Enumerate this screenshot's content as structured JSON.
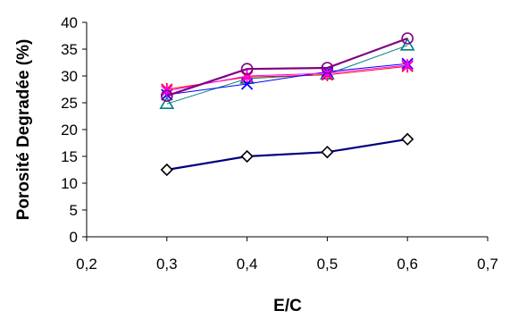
{
  "chart_data": {
    "type": "line",
    "xlabel": "E/C",
    "ylabel": "Porosité Degradée (%)",
    "xlim": [
      0.2,
      0.7
    ],
    "ylim": [
      0,
      40
    ],
    "x_ticks": [
      "0,2",
      "0,3",
      "0,4",
      "0,5",
      "0,6",
      "0,7"
    ],
    "y_ticks": [
      "0",
      "5",
      "10",
      "15",
      "20",
      "25",
      "30",
      "35",
      "40"
    ],
    "x_tick_values": [
      0.2,
      0.3,
      0.4,
      0.5,
      0.6,
      0.7
    ],
    "y_tick_values": [
      0,
      5,
      10,
      15,
      20,
      25,
      30,
      35,
      40
    ],
    "grid": false,
    "legend": false,
    "x": [
      0.3,
      0.4,
      0.5,
      0.6
    ],
    "series": [
      {
        "values": [
          12.5,
          15.0,
          15.8,
          18.2
        ],
        "color": "#000080",
        "marker": "diamond",
        "line_width": 2.2
      },
      {
        "values": [
          24.8,
          29.5,
          30.3,
          35.7
        ],
        "color": "#008080",
        "marker": "triangle",
        "line_width": 1
      },
      {
        "values": [
          27.5,
          29.8,
          30.2,
          31.8
        ],
        "color": "#ff0000",
        "marker": "star",
        "line_width": 1
      },
      {
        "values": [
          26.5,
          28.5,
          30.8,
          32.3
        ],
        "color": "#0000ff",
        "marker": "x",
        "line_width": 1
      },
      {
        "values": [
          27.2,
          30.0,
          30.5,
          32.0
        ],
        "color": "#ff00ff",
        "marker": "star",
        "line_width": 1
      },
      {
        "values": [
          26.3,
          31.3,
          31.5,
          37.0
        ],
        "color": "#800080",
        "marker": "circle",
        "line_width": 2.2
      }
    ]
  }
}
